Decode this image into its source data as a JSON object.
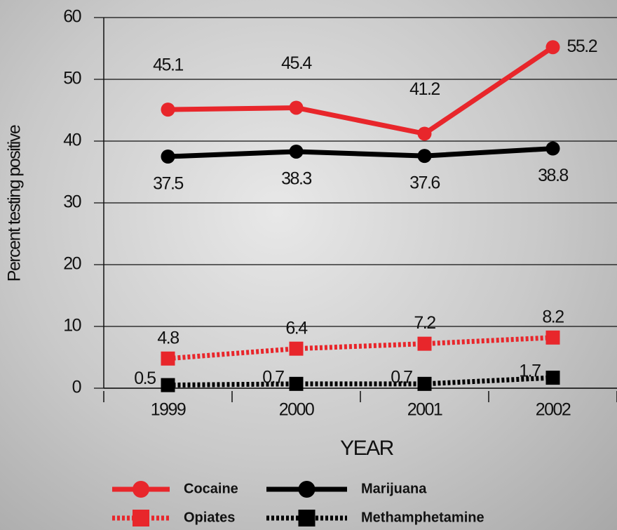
{
  "chart_data": {
    "type": "line",
    "y_label": "Percent testing positive",
    "x_label": "YEAR",
    "categories": [
      "1999",
      "2000",
      "2001",
      "2002"
    ],
    "series": [
      {
        "name": "Cocaine",
        "color": "#e8262b",
        "line": "solid",
        "marker": "circle",
        "values": [
          45.1,
          45.4,
          41.2,
          55.2
        ]
      },
      {
        "name": "Marijuana",
        "color": "#000000",
        "line": "solid",
        "marker": "circle",
        "values": [
          37.5,
          38.3,
          37.6,
          38.8
        ]
      },
      {
        "name": "Opiates",
        "color": "#e8262b",
        "line": "dotted",
        "marker": "square",
        "values": [
          4.8,
          6.4,
          7.2,
          8.2
        ]
      },
      {
        "name": "Methamphetamine",
        "color": "#000000",
        "line": "dotted",
        "marker": "square",
        "values": [
          0.5,
          0.7,
          0.7,
          1.7
        ]
      }
    ],
    "ylim": [
      0,
      60
    ],
    "yticks": [
      0,
      10,
      20,
      30,
      40,
      50,
      60
    ],
    "grid": true
  }
}
